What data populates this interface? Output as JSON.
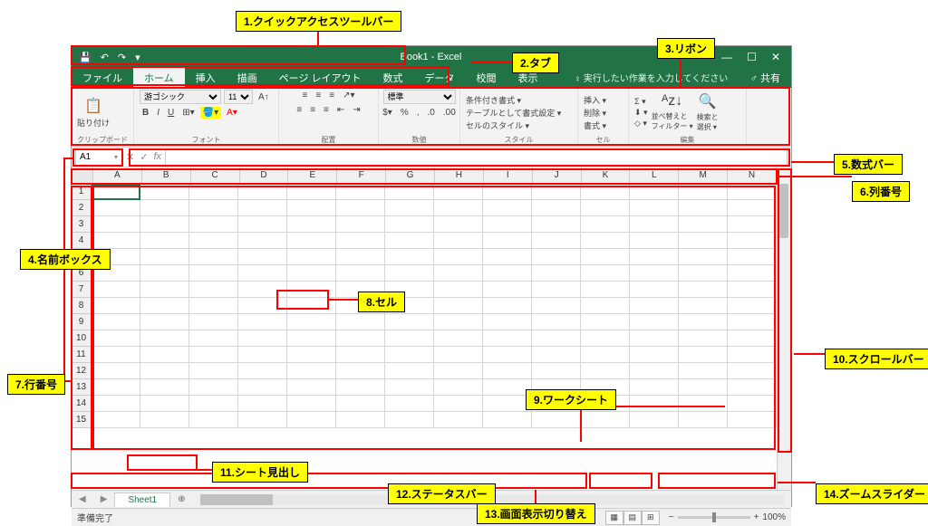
{
  "annotations": {
    "a1": "1.クイックアクセスツールバー",
    "a2": "2.タブ",
    "a3": "3.リボン",
    "a4": "4.名前ボックス",
    "a5": "5.数式バー",
    "a6": "6.列番号",
    "a7": "7.行番号",
    "a8": "8.セル",
    "a9": "9.ワークシート",
    "a10": "10.スクロールバー",
    "a11": "11.シート見出し",
    "a12": "12.ステータスバー",
    "a13": "13.画面表示切り替え",
    "a14": "14.ズームスライダー"
  },
  "titlebar": {
    "title": "Book1  -  Excel",
    "save_icon": "💾",
    "undo_icon": "↶",
    "redo_icon": "↷",
    "more_icon": "▾",
    "min_icon": "—",
    "max_icon": "☐",
    "close_icon": "✕"
  },
  "tabs": {
    "items": [
      "ファイル",
      "ホーム",
      "挿入",
      "描画",
      "ページ レイアウト",
      "数式",
      "データ",
      "校閲",
      "表示"
    ],
    "active_index": 1,
    "tell_me": "♀ 実行したい作業を入力してください",
    "share": "♂ 共有"
  },
  "ribbon": {
    "clipboard": {
      "paste": "貼り付け",
      "label": "クリップボード"
    },
    "font": {
      "name": "游ゴシック",
      "size": "11",
      "label": "フォント",
      "bold": "B",
      "italic": "I",
      "underline": "U"
    },
    "alignment": {
      "label": "配置",
      "wrap": "📄"
    },
    "number": {
      "format": "標準",
      "label": "数値"
    },
    "styles": {
      "cond": "条件付き書式 ▾",
      "table": "テーブルとして書式設定 ▾",
      "cell": "セルのスタイル ▾",
      "label": "スタイル"
    },
    "cells": {
      "insert": "挿入 ▾",
      "delete": "削除 ▾",
      "format": "書式 ▾",
      "label": "セル"
    },
    "editing": {
      "sum": "Σ ▾",
      "fill": "⬇ ▾",
      "clear": "◇ ▾",
      "sort": "並べ替えと\nフィルター ▾",
      "find": "検索と\n選択 ▾",
      "label": "編集"
    }
  },
  "formula": {
    "name_box": "A1",
    "cancel": "✕",
    "enter": "✓",
    "fx": "fx"
  },
  "columns": [
    "A",
    "B",
    "C",
    "D",
    "E",
    "F",
    "G",
    "H",
    "I",
    "J",
    "K",
    "L",
    "M",
    "N"
  ],
  "rows": [
    1,
    2,
    3,
    4,
    5,
    6,
    7,
    8,
    9,
    10,
    11,
    12,
    13,
    14,
    15
  ],
  "sheet": {
    "name": "Sheet1",
    "add": "⊕"
  },
  "status": {
    "ready": "準備完了",
    "zoom": "100%",
    "minus": "−",
    "plus": "+"
  },
  "colors": {
    "excel_green": "#217346",
    "annotation_bg": "#ffff00",
    "red": "#ff0000"
  }
}
